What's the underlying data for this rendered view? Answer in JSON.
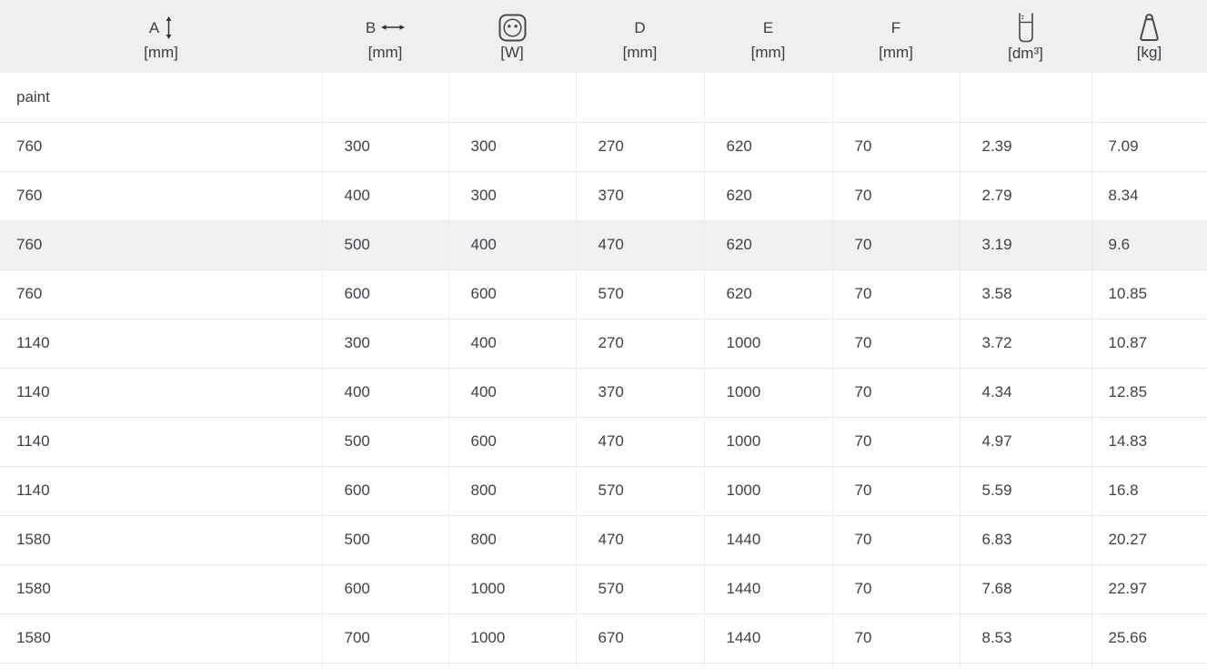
{
  "table": {
    "columns": [
      {
        "key": "a",
        "label": "A",
        "icon": "arrow-vertical-icon",
        "unit": "[mm]"
      },
      {
        "key": "b",
        "label": "B",
        "icon": "arrow-horizontal-icon",
        "unit": "[mm]"
      },
      {
        "key": "power",
        "label": "",
        "icon": "power-socket-icon",
        "unit": "[W]"
      },
      {
        "key": "d",
        "label": "D",
        "icon": "",
        "unit": "[mm]"
      },
      {
        "key": "e",
        "label": "E",
        "icon": "",
        "unit": "[mm]"
      },
      {
        "key": "f",
        "label": "F",
        "icon": "",
        "unit": "[mm]"
      },
      {
        "key": "volume",
        "label": "",
        "icon": "canister-icon",
        "unit": "[dm³]"
      },
      {
        "key": "weight",
        "label": "",
        "icon": "weight-icon",
        "unit": "[kg]"
      }
    ],
    "group_label": "paint",
    "highlighted_row": 2,
    "rows": [
      [
        "760",
        "300",
        "300",
        "270",
        "620",
        "70",
        "2.39",
        "7.09"
      ],
      [
        "760",
        "400",
        "300",
        "370",
        "620",
        "70",
        "2.79",
        "8.34"
      ],
      [
        "760",
        "500",
        "400",
        "470",
        "620",
        "70",
        "3.19",
        "9.6"
      ],
      [
        "760",
        "600",
        "600",
        "570",
        "620",
        "70",
        "3.58",
        "10.85"
      ],
      [
        "1140",
        "300",
        "400",
        "270",
        "1000",
        "70",
        "3.72",
        "10.87"
      ],
      [
        "1140",
        "400",
        "400",
        "370",
        "1000",
        "70",
        "4.34",
        "12.85"
      ],
      [
        "1140",
        "500",
        "600",
        "470",
        "1000",
        "70",
        "4.97",
        "14.83"
      ],
      [
        "1140",
        "600",
        "800",
        "570",
        "1000",
        "70",
        "5.59",
        "16.8"
      ],
      [
        "1580",
        "500",
        "800",
        "470",
        "1440",
        "70",
        "6.83",
        "20.27"
      ],
      [
        "1580",
        "600",
        "1000",
        "570",
        "1440",
        "70",
        "7.68",
        "22.97"
      ],
      [
        "1580",
        "700",
        "1000",
        "670",
        "1440",
        "70",
        "8.53",
        "25.66"
      ]
    ]
  },
  "colors": {
    "header_background": "#efefef",
    "row_highlight": "#f1f1f1",
    "row_border": "#e8e8e8",
    "text": "#3e4147"
  }
}
